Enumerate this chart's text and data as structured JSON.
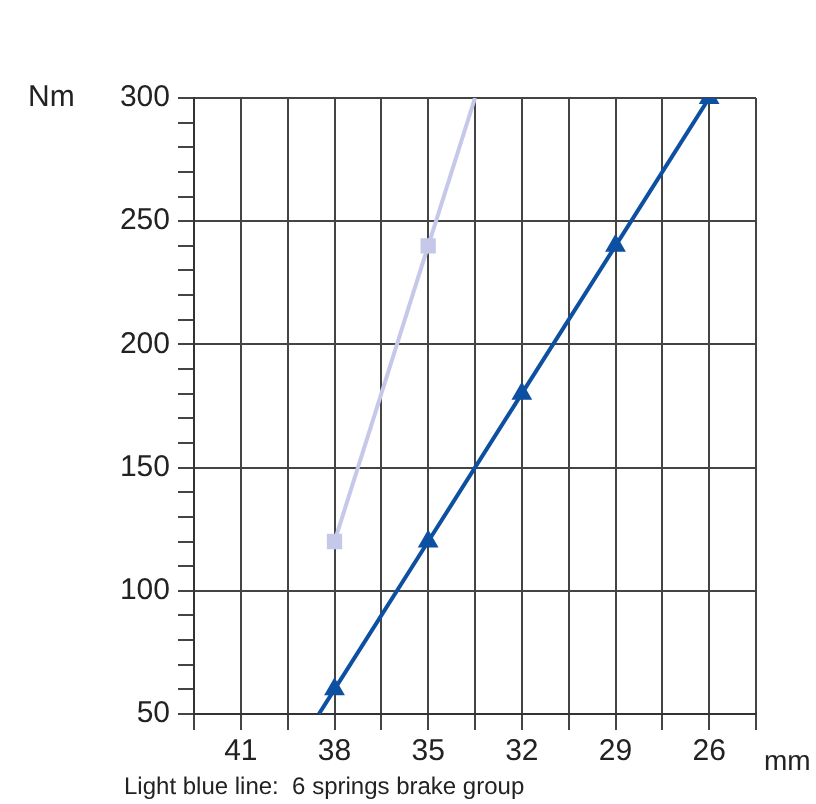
{
  "chart_data": {
    "type": "line",
    "xlabel": "mm",
    "ylabel": "Nm",
    "xlim": [
      42.5,
      24.5
    ],
    "xticks": [
      {
        "value": 42.5,
        "label": null
      },
      41,
      {
        "value": 39.5,
        "label": null
      },
      38,
      {
        "value": 36.5,
        "label": null
      },
      35,
      {
        "value": 33.5,
        "label": null
      },
      32,
      {
        "value": 30.5,
        "label": null
      },
      29,
      {
        "value": 27.5,
        "label": null
      },
      26,
      {
        "value": 24.5,
        "label": null
      }
    ],
    "ylim": [
      50,
      300
    ],
    "yticks": [
      50,
      {
        "value": 60,
        "label": null
      },
      {
        "value": 70,
        "label": null
      },
      {
        "value": 80,
        "label": null
      },
      {
        "value": 90,
        "label": null
      },
      100,
      {
        "value": 110,
        "label": null
      },
      {
        "value": 120,
        "label": null
      },
      {
        "value": 130,
        "label": null
      },
      {
        "value": 140,
        "label": null
      },
      150,
      {
        "value": 160,
        "label": null
      },
      {
        "value": 170,
        "label": null
      },
      {
        "value": 180,
        "label": null
      },
      {
        "value": 190,
        "label": null
      },
      200,
      {
        "value": 210,
        "label": null
      },
      {
        "value": 220,
        "label": null
      },
      {
        "value": 230,
        "label": null
      },
      {
        "value": 240,
        "label": null
      },
      250,
      {
        "value": 260,
        "label": null
      },
      {
        "value": 270,
        "label": null
      },
      {
        "value": 280,
        "label": null
      },
      {
        "value": 290,
        "label": null
      },
      300
    ],
    "grid": true,
    "legend": false,
    "series": [
      {
        "color": "#c5c8e8",
        "marker": "square",
        "x": [
          38,
          35
        ],
        "values": [
          120,
          240
        ]
      },
      {
        "color": "#c5c8e8",
        "marker": "none",
        "x": [
          35,
          33.5
        ],
        "values": [
          240,
          300
        ]
      },
      {
        "color": "#0d4fa0",
        "marker": "triangle",
        "x": [
          38,
          35,
          32,
          29,
          26
        ],
        "values": [
          60,
          120,
          180,
          240,
          300
        ]
      },
      {
        "color": "#0d4fa0",
        "marker": "none",
        "x": [
          38.5,
          38
        ],
        "values": [
          50,
          60
        ]
      }
    ],
    "annotations": [
      "Light blue line:  6 springs brake group"
    ]
  }
}
